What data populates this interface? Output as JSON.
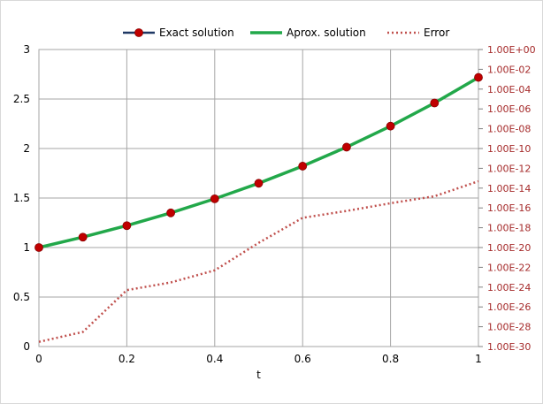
{
  "chart_data": {
    "type": "line",
    "xlabel": "t",
    "x": [
      0,
      0.1,
      0.2,
      0.3,
      0.4,
      0.5,
      0.6,
      0.7,
      0.8,
      0.9,
      1
    ],
    "x_ticks": [
      "0",
      "0.2",
      "0.4",
      "0.6",
      "0.8",
      "1"
    ],
    "x_tick_values": [
      0,
      0.2,
      0.4,
      0.6,
      0.8,
      1
    ],
    "xlim": [
      0,
      1
    ],
    "y_left": {
      "lim": [
        0,
        3
      ],
      "ticks": [
        "0",
        "0.5",
        "1",
        "1.5",
        "2",
        "2.5",
        "3"
      ],
      "tick_values": [
        0,
        0.5,
        1,
        1.5,
        2,
        2.5,
        3
      ]
    },
    "y_right": {
      "scale": "log",
      "lim": [
        1e-30,
        1
      ],
      "ticks": [
        "1.00E+00",
        "1.00E-02",
        "1.00E-04",
        "1.00E-06",
        "1.00E-08",
        "1.00E-10",
        "1.00E-12",
        "1.00E-14",
        "1.00E-16",
        "1.00E-18",
        "1.00E-20",
        "1.00E-22",
        "1.00E-24",
        "1.00E-26",
        "1.00E-28",
        "1.00E-30"
      ],
      "tick_values": [
        1.0,
        0.01,
        0.0001,
        1e-06,
        1e-08,
        1e-10,
        1e-12,
        1e-14,
        1e-16,
        1e-18,
        1e-20,
        1e-22,
        1e-24,
        1e-26,
        1e-28,
        1e-30
      ],
      "tick_color": "#a52a2a"
    },
    "grid": true,
    "legend_position": "top",
    "series": [
      {
        "name": "Exact solution",
        "axis": "left",
        "style": "line-with-markers",
        "color": "#1f3864",
        "marker_color": "#c00000",
        "values": [
          1.0,
          1.105,
          1.221,
          1.35,
          1.492,
          1.649,
          1.822,
          2.014,
          2.226,
          2.46,
          2.718
        ]
      },
      {
        "name": "Aprox. solution",
        "axis": "left",
        "style": "solid",
        "color": "#22a84a",
        "values": [
          1.0,
          1.105,
          1.221,
          1.35,
          1.492,
          1.649,
          1.822,
          2.014,
          2.226,
          2.46,
          2.718
        ]
      },
      {
        "name": "Error",
        "axis": "right",
        "style": "dotted",
        "color": "#c0504d",
        "values": [
          3e-30,
          3e-29,
          5e-25,
          3e-24,
          5e-23,
          3e-20,
          1e-17,
          5e-17,
          3e-16,
          1.5e-15,
          5e-14
        ]
      }
    ]
  }
}
